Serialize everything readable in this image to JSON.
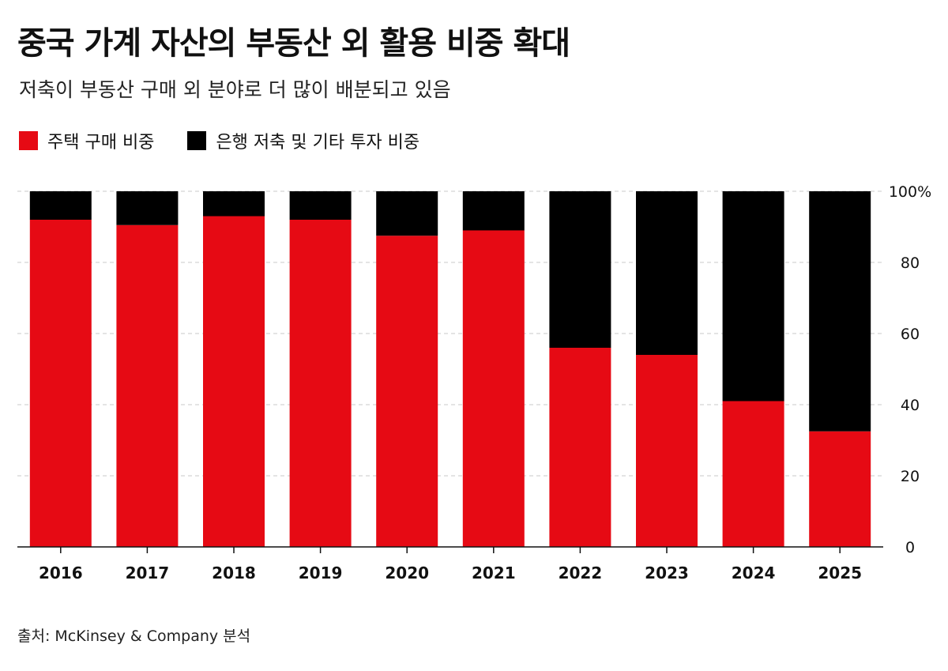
{
  "title": "중국 가계 자산의 부동산 외 활용 비중 확대",
  "subtitle": "저축이 부동산 구매 외 분야로 더 많이 배분되고 있음",
  "legend": [
    {
      "label": "주택 구매 비중",
      "color": "#E60A14"
    },
    {
      "label": "은행 저축 및 기타 투자 비중",
      "color": "#000000"
    }
  ],
  "source": "출처: McKinsey & Company 분석",
  "chart_data": {
    "type": "bar",
    "stacked": true,
    "categories": [
      "2016",
      "2017",
      "2018",
      "2019",
      "2020",
      "2021",
      "2022",
      "2023",
      "2024",
      "2025"
    ],
    "series": [
      {
        "name": "주택 구매 비중",
        "color": "#E60A14",
        "values": [
          92,
          90.5,
          93,
          92,
          87.5,
          89,
          56,
          54,
          41,
          32.5
        ]
      },
      {
        "name": "은행 저축 및 기타 투자 비중",
        "color": "#000000",
        "values": [
          8,
          9.5,
          7,
          8,
          12.5,
          11,
          44,
          46,
          59,
          67.5
        ]
      }
    ],
    "ylim": [
      0,
      100
    ],
    "yticks": [
      0,
      20,
      40,
      60,
      80,
      100
    ],
    "ytick_labels": [
      "0",
      "20",
      "40",
      "60",
      "80",
      "100%"
    ],
    "y_axis_side": "right",
    "grid": true
  }
}
